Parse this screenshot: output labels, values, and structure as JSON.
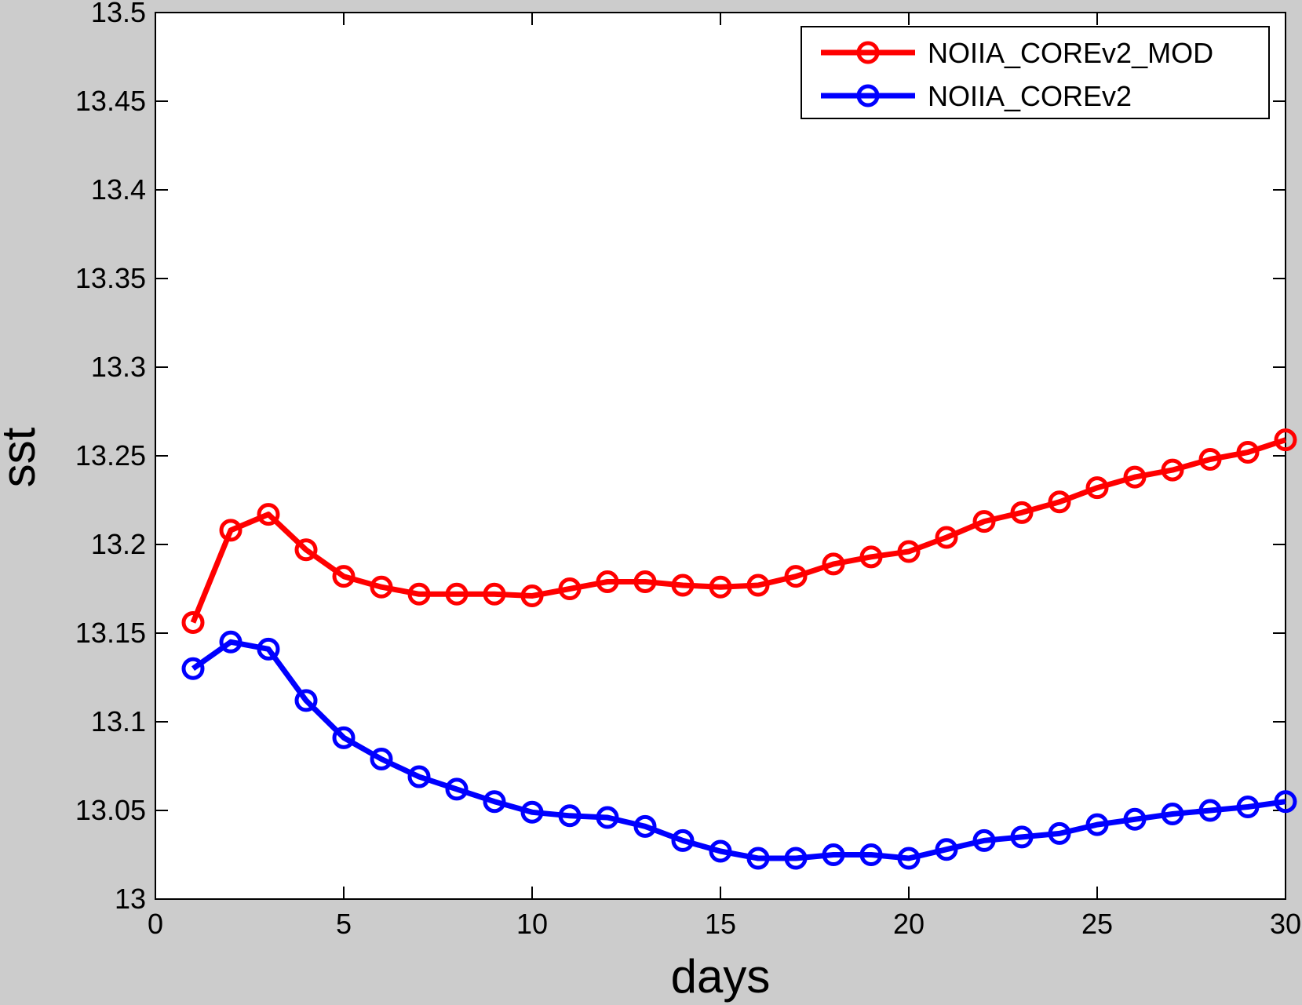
{
  "chart_data": {
    "type": "line",
    "title": "",
    "xlabel": "days",
    "ylabel": "sst",
    "xlim": [
      0,
      30
    ],
    "ylim": [
      13.0,
      13.5
    ],
    "xticks": [
      0,
      5,
      10,
      15,
      20,
      25,
      30
    ],
    "xtick_labels": [
      "0",
      "5",
      "10",
      "15",
      "20",
      "25",
      "30"
    ],
    "yticks": [
      13.0,
      13.05,
      13.1,
      13.15,
      13.2,
      13.25,
      13.3,
      13.35,
      13.4,
      13.45,
      13.5
    ],
    "ytick_labels": [
      "13",
      "13.05",
      "13.1",
      "13.15",
      "13.2",
      "13.25",
      "13.3",
      "13.35",
      "13.4",
      "13.45",
      "13.5"
    ],
    "grid": false,
    "legend_position": "top-right",
    "x": [
      1,
      2,
      3,
      4,
      5,
      6,
      7,
      8,
      9,
      10,
      11,
      12,
      13,
      14,
      15,
      16,
      17,
      18,
      19,
      20,
      21,
      22,
      23,
      24,
      25,
      26,
      27,
      28,
      29,
      30
    ],
    "series": [
      {
        "name": "NOIIA_COREv2_MOD",
        "color": "#ff0000",
        "marker": "circle",
        "values": [
          13.156,
          13.208,
          13.217,
          13.197,
          13.182,
          13.176,
          13.172,
          13.172,
          13.172,
          13.171,
          13.175,
          13.179,
          13.179,
          13.177,
          13.176,
          13.177,
          13.182,
          13.189,
          13.193,
          13.196,
          13.204,
          13.213,
          13.218,
          13.224,
          13.232,
          13.238,
          13.242,
          13.248,
          13.252,
          13.259
        ]
      },
      {
        "name": "NOIIA_COREv2",
        "color": "#0000ff",
        "marker": "circle",
        "values": [
          13.13,
          13.145,
          13.141,
          13.112,
          13.091,
          13.079,
          13.069,
          13.062,
          13.055,
          13.049,
          13.047,
          13.046,
          13.041,
          13.033,
          13.027,
          13.023,
          13.023,
          13.025,
          13.025,
          13.023,
          13.028,
          13.033,
          13.035,
          13.037,
          13.042,
          13.045,
          13.048,
          13.05,
          13.052,
          13.055
        ]
      }
    ]
  }
}
